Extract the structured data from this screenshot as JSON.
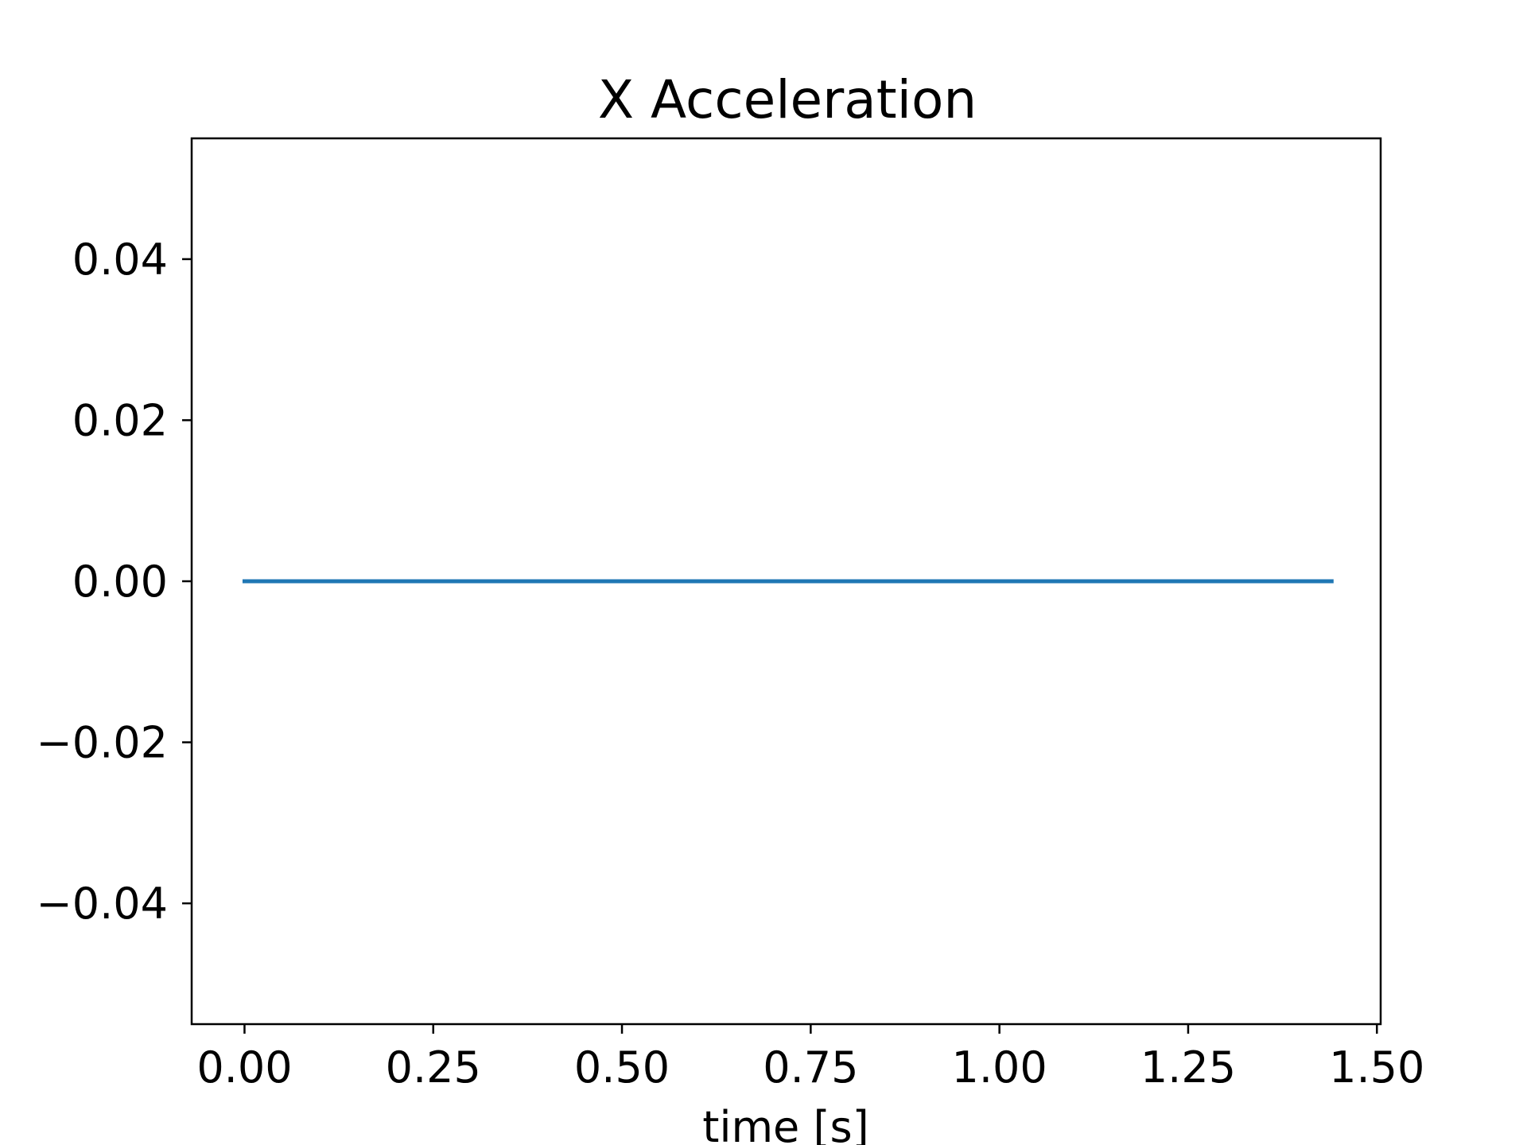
{
  "chart_data": {
    "type": "line",
    "title": "X Acceleration",
    "xlabel": "time [s]",
    "ylabel": "",
    "xlim": [
      -0.07,
      1.505
    ],
    "ylim": [
      -0.055,
      0.055
    ],
    "x_ticks": [
      0.0,
      0.25,
      0.5,
      0.75,
      1.0,
      1.25,
      1.5
    ],
    "x_tick_labels": [
      "0.00",
      "0.25",
      "0.50",
      "0.75",
      "1.00",
      "1.25",
      "1.50"
    ],
    "y_ticks": [
      0.04,
      0.02,
      0.0,
      -0.02,
      -0.04
    ],
    "y_tick_labels": [
      "0.04",
      "0.02",
      "0.00",
      "−0.02",
      "−0.04"
    ],
    "grid": false,
    "series": [
      {
        "color": "#1f77b4",
        "x": [
          0.0,
          1.44
        ],
        "y": [
          0.0,
          0.0
        ]
      }
    ]
  }
}
